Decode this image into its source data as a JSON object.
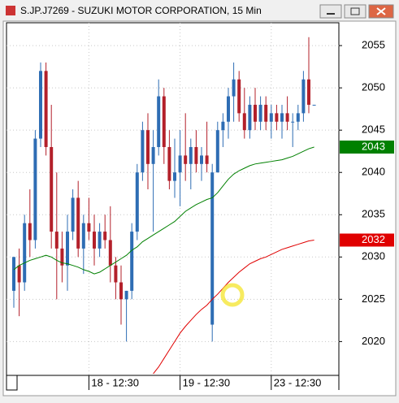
{
  "chart_data": {
    "type": "candlestick",
    "title": "S.JP.J7269 - SUZUKI MOTOR CORPORATION, 15 Min",
    "categories": [
      null,
      null,
      null,
      null,
      null,
      null,
      null,
      null,
      null,
      null,
      null,
      null,
      null,
      null,
      "18 - 12:30",
      null,
      null,
      null,
      null,
      null,
      null,
      null,
      null,
      null,
      null,
      null,
      null,
      null,
      null,
      null,
      null,
      "19 - 12:30",
      null,
      null,
      null,
      null,
      null,
      null,
      null,
      null,
      null,
      null,
      null,
      null,
      null,
      null,
      null,
      null,
      "23 - 12:30",
      null,
      null,
      null,
      null,
      null,
      null,
      null,
      null
    ],
    "open": [
      2026,
      2029,
      2027,
      2034,
      2032,
      2044,
      2052,
      2043,
      2033,
      2031,
      2029,
      2033,
      2037,
      2031,
      2034,
      2033,
      2031,
      2033,
      2032,
      2029,
      2027,
      2025,
      2026,
      2033,
      2040,
      2045,
      2041,
      2043,
      2049,
      2043,
      2039,
      2040,
      2042,
      2041,
      2043,
      2041,
      2042,
      2022,
      2040,
      2045,
      2046,
      2049,
      2051,
      2047,
      2045,
      2048,
      2046,
      2048,
      2046,
      2047,
      2046,
      2047,
      2046,
      2046,
      2047,
      2051,
      2048
    ],
    "high": [
      2030,
      2031,
      2035,
      2038,
      2045,
      2053,
      2053,
      2048,
      2040,
      2033,
      2035,
      2038,
      2039,
      2035,
      2037,
      2035,
      2034,
      2035,
      2036,
      2030,
      2029,
      2026,
      2034,
      2041,
      2046,
      2047,
      2045,
      2051,
      2050,
      2045,
      2044,
      2045,
      2047,
      2044,
      2045,
      2043,
      2046,
      2041,
      2046,
      2047,
      2050,
      2053,
      2052,
      2050,
      2049,
      2050,
      2049,
      2049,
      2048,
      2048,
      2048,
      2049,
      2047,
      2048,
      2052,
      2056,
      2048
    ],
    "low": [
      2024,
      2023,
      2026,
      2030,
      2031,
      2043,
      2042,
      2031,
      2025,
      2027,
      2026,
      2032,
      2030,
      2028,
      2032,
      2029,
      2030,
      2031,
      2027,
      2025,
      2022,
      2020,
      2025,
      2032,
      2039,
      2038,
      2033,
      2042,
      2041,
      2038,
      2037,
      2036,
      2039,
      2038,
      2040,
      2039,
      2040,
      2020,
      2040,
      2043,
      2044,
      2046,
      2046,
      2044,
      2044,
      2045,
      2045,
      2045,
      2044,
      2045,
      2044,
      2045,
      2043,
      2045,
      2046,
      2047,
      2048
    ],
    "close": [
      2030,
      2027,
      2034,
      2032,
      2044,
      2052,
      2043,
      2033,
      2031,
      2029,
      2033,
      2037,
      2031,
      2034,
      2033,
      2031,
      2033,
      2032,
      2029,
      2027,
      2025,
      2026,
      2033,
      2040,
      2045,
      2041,
      2043,
      2049,
      2043,
      2039,
      2040,
      2042,
      2041,
      2043,
      2041,
      2042,
      2041,
      2040,
      2045,
      2046,
      2049,
      2051,
      2047,
      2045,
      2048,
      2046,
      2048,
      2046,
      2047,
      2046,
      2047,
      2046,
      2046,
      2047,
      2051,
      2048,
      2048
    ],
    "up_color": "#2e6db4",
    "down_color": "#b3202a",
    "series": [
      {
        "color": "#008000",
        "values": [
          2028.5,
          2029,
          2029.3,
          2029.6,
          2029.8,
          2030,
          2030.2,
          2030,
          2029.6,
          2029.3,
          2029.2,
          2029,
          2028.8,
          2028.5,
          2028.3,
          2028,
          2028.2,
          2028.6,
          2029,
          2029.4,
          2029.8,
          2030.2,
          2030.8,
          2031.2,
          2031.8,
          2032.2,
          2032.6,
          2033,
          2033.4,
          2033.8,
          2034.2,
          2034.8,
          2035.4,
          2035.8,
          2036.2,
          2036.5,
          2036.8,
          2037,
          2037.6,
          2038.4,
          2039.2,
          2039.8,
          2040.2,
          2040.5,
          2040.8,
          2041,
          2041.1,
          2041.2,
          2041.3,
          2041.4,
          2041.5,
          2041.7,
          2041.9,
          2042.2,
          2042.5,
          2042.8,
          2043
        ]
      },
      {
        "color": "#e00000",
        "values": [
          null,
          null,
          null,
          null,
          null,
          null,
          null,
          null,
          null,
          null,
          null,
          null,
          null,
          null,
          null,
          null,
          null,
          null,
          null,
          null,
          null,
          null,
          null,
          null,
          null,
          null,
          2016.2,
          2017,
          2018,
          2019,
          2020,
          2021,
          2021.8,
          2022.5,
          2023.2,
          2023.8,
          2024.3,
          2025,
          2025.6,
          2026.3,
          2027,
          2027.6,
          2028.2,
          2028.7,
          2029.2,
          2029.5,
          2029.8,
          2030,
          2030.3,
          2030.6,
          2030.9,
          2031.1,
          2031.3,
          2031.5,
          2031.7,
          2031.9,
          2032
        ]
      }
    ],
    "ylim": [
      2016,
      2057.7
    ],
    "yticks": [
      2020,
      2025,
      2030,
      2035,
      2040,
      2045,
      2050,
      2055
    ],
    "grid": true
  }
}
